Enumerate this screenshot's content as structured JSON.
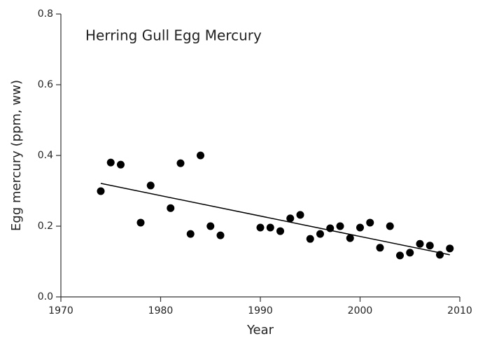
{
  "chart_data": {
    "type": "scatter",
    "title": "Herring Gull Egg Mercury",
    "x_label": "Year",
    "y_label": "Egg mercury (ppm, ww)",
    "color": "#000000",
    "x": [
      1974,
      1975,
      1976,
      1978,
      1979,
      1981,
      1982,
      1983,
      1984,
      1985,
      1986,
      1990,
      1991,
      1992,
      1993,
      1994,
      1995,
      1996,
      1997,
      1998,
      1999,
      2000,
      2001,
      2002,
      2003,
      2004,
      2005,
      2006,
      2007,
      2008,
      2009
    ],
    "values": [
      0.299,
      0.38,
      0.374,
      0.21,
      0.315,
      0.251,
      0.378,
      0.178,
      0.4,
      0.2,
      0.174,
      0.196,
      0.196,
      0.186,
      0.222,
      0.232,
      0.164,
      0.178,
      0.194,
      0.2,
      0.166,
      0.196,
      0.21,
      0.139,
      0.2,
      0.117,
      0.125,
      0.15,
      0.145,
      0.119,
      0.137
    ],
    "trend": {
      "x": [
        1974,
        2009
      ],
      "values": [
        0.321,
        0.119
      ]
    },
    "xlim": [
      1970,
      2010
    ],
    "xticks": [
      1970,
      1980,
      1990,
      2000,
      2010
    ],
    "ylim": [
      0,
      0.8
    ],
    "yticks": [
      {
        "value": 0,
        "label": "0.0"
      },
      0.2,
      0.4,
      0.6,
      0.8
    ],
    "grid": false
  }
}
